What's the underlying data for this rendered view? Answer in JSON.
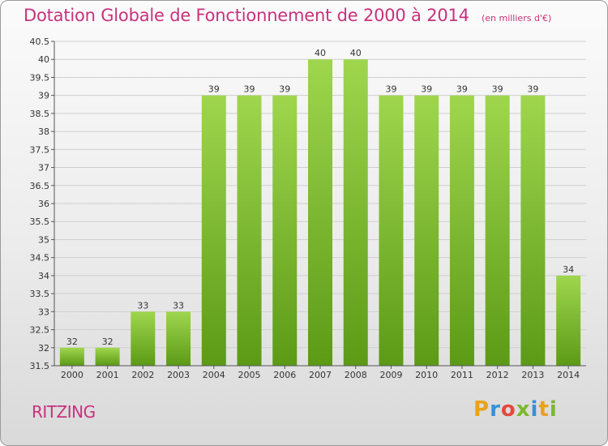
{
  "title": "Dotation Globale de Fonctionnement de 2000 à 2014",
  "subtitle": "(en milliers d'€)",
  "commune": "RITZING",
  "logo": {
    "letters": [
      "P",
      "r",
      "o",
      "x",
      "i",
      "t",
      "i"
    ],
    "colors": [
      "#e8a317",
      "#3b8fd6",
      "#e24a3b",
      "#7cb82f",
      "#3b8fd6",
      "#e8a317",
      "#7cb82f"
    ]
  },
  "colors": {
    "bar_top": "#9fd64e",
    "bar_bottom": "#5c9a16",
    "title": "#c8317d"
  },
  "chart_data": {
    "type": "bar",
    "categories": [
      "2000",
      "2001",
      "2002",
      "2003",
      "2004",
      "2005",
      "2006",
      "2007",
      "2008",
      "2009",
      "2010",
      "2011",
      "2012",
      "2013",
      "2014"
    ],
    "values": [
      32,
      32,
      33,
      33,
      39,
      39,
      39,
      40,
      40,
      39,
      39,
      39,
      39,
      39,
      34
    ],
    "value_labels": [
      "32",
      "32",
      "33",
      "33",
      "39",
      "39",
      "39",
      "40",
      "40",
      "39",
      "39",
      "39",
      "39",
      "39",
      "34"
    ],
    "ylim": [
      31.5,
      40.5
    ],
    "yticks": [
      31.5,
      32,
      32.5,
      33,
      33.5,
      34,
      34.5,
      35,
      35.5,
      36,
      36.5,
      37,
      37.5,
      38,
      38.5,
      39,
      39.5,
      40,
      40.5
    ],
    "ytick_labels": [
      "31.5",
      "32",
      "32.5",
      "33",
      "33.5",
      "34",
      "34.5",
      "35",
      "35.5",
      "36",
      "36.5",
      "37",
      "37.5",
      "38",
      "38.5",
      "39",
      "39.5",
      "40",
      "40.5"
    ],
    "grid": true,
    "xlabel": "",
    "ylabel": ""
  }
}
